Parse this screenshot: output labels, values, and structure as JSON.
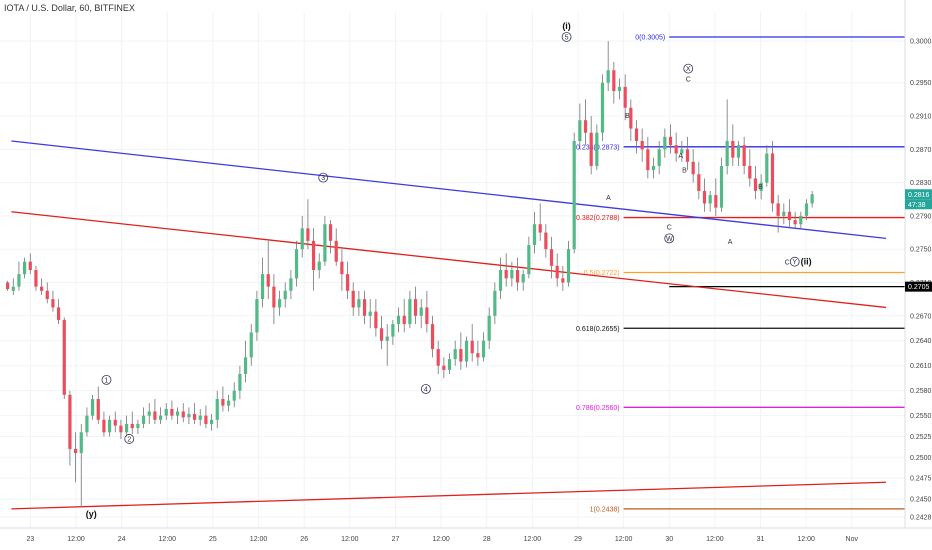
{
  "header": {
    "title": "IOTA / U.S. Dollar, 60, BITFINEX"
  },
  "chart_data": {
    "type": "candlestick",
    "symbol": "IOTA / U.S. Dollar",
    "interval": "60",
    "exchange": "BITFINEX",
    "ylim": [
      0.2415,
      0.3035
    ],
    "y_ticks": [
      0.3,
      0.295,
      0.291,
      0.287,
      0.283,
      0.279,
      0.275,
      0.271,
      0.267,
      0.264,
      0.261,
      0.258,
      0.255,
      0.2525,
      0.25,
      0.2475,
      0.245,
      0.2428
    ],
    "y_tick_labels": [
      "0.3000",
      "0.2950",
      "0.2910",
      "0.2870",
      "0.2830",
      "0.2790",
      "0.2750",
      "0.2710",
      "0.2670",
      "0.2640",
      "0.2610",
      "0.2580",
      "0.2550",
      "0.2525",
      "0.2500",
      "0.2475",
      "0.2450",
      "0.2428"
    ],
    "x_labels": [
      {
        "label": "23",
        "t": 0
      },
      {
        "label": "12:00",
        "t": 12
      },
      {
        "label": "24",
        "t": 24
      },
      {
        "label": "12:00",
        "t": 36
      },
      {
        "label": "25",
        "t": 48
      },
      {
        "label": "12:00",
        "t": 60
      },
      {
        "label": "26",
        "t": 72
      },
      {
        "label": "12:00",
        "t": 84
      },
      {
        "label": "27",
        "t": 96
      },
      {
        "label": "12:00",
        "t": 108
      },
      {
        "label": "28",
        "t": 120
      },
      {
        "label": "12:00",
        "t": 132
      },
      {
        "label": "29",
        "t": 144
      },
      {
        "label": "12:00",
        "t": 156
      },
      {
        "label": "30",
        "t": 168
      },
      {
        "label": "12:00",
        "t": 180
      },
      {
        "label": "31",
        "t": 192
      },
      {
        "label": "12:00",
        "t": 204
      },
      {
        "label": "Nov",
        "t": 216
      }
    ],
    "price_labels": [
      {
        "value": 0.2816,
        "text": "0.2816",
        "color": "#26a69a"
      },
      {
        "value": 0.2804,
        "text": "47:38",
        "color": "#26a69a"
      },
      {
        "value": 0.2705,
        "text": "0.2705",
        "color": "#000000"
      }
    ],
    "fib_levels": [
      {
        "label": "0(0.3005)",
        "value": 0.3005,
        "color": "#2e2ee6",
        "t_start": 168,
        "t_end": 230
      },
      {
        "label": "0.236(0.2873)",
        "value": 0.2873,
        "color": "#2e2ee6",
        "t_start": 156,
        "t_end": 230
      },
      {
        "label": "0.382(0.2788)",
        "value": 0.2788,
        "color": "#e0201c",
        "t_start": 156,
        "t_end": 230
      },
      {
        "label": "0.5(0.2722)",
        "value": 0.2722,
        "color": "#ff9f2e",
        "t_start": 156,
        "t_end": 230
      },
      {
        "label": "0.618(0.2655)",
        "value": 0.2655,
        "color": "#111111",
        "t_start": 156,
        "t_end": 230
      },
      {
        "label": "0.786(0.2560)",
        "value": 0.256,
        "color": "#e020e0",
        "t_start": 156,
        "t_end": 230
      },
      {
        "label": "1(0.2438)",
        "value": 0.2438,
        "color": "#b85c1c",
        "t_start": 156,
        "t_end": 230
      }
    ],
    "horizontal_lines": [
      {
        "value": 0.2705,
        "color": "#000000",
        "t_start": 168,
        "t_end": 230
      }
    ],
    "trend_lines": [
      {
        "color": "#3b3be0",
        "t1": -5,
        "v1": 0.288,
        "t2": 225,
        "v2": 0.2763
      },
      {
        "color": "#e0201c",
        "t1": -5,
        "v1": 0.2795,
        "t2": 225,
        "v2": 0.268
      },
      {
        "color": "#e0201c",
        "t1": -5,
        "v1": 0.2438,
        "t2": 225,
        "v2": 0.247
      }
    ],
    "wave_labels": [
      {
        "text": "1",
        "t": 20,
        "v": 0.2593,
        "circled": true
      },
      {
        "text": "2",
        "t": 26,
        "v": 0.2522,
        "circled": true
      },
      {
        "text": "3",
        "t": 77,
        "v": 0.2836,
        "circled": true
      },
      {
        "text": "4",
        "t": 104,
        "v": 0.2582,
        "circled": true
      },
      {
        "text": "5",
        "t": 141,
        "v": 0.3005,
        "circled": true
      },
      {
        "text": "(i)",
        "t": 141,
        "v": 0.3018,
        "circled": false,
        "bold": true
      },
      {
        "text": "(y)",
        "t": 16,
        "v": 0.2432,
        "circled": false,
        "bold": true
      },
      {
        "text": "X",
        "t": 173,
        "v": 0.2967,
        "circled": true
      },
      {
        "text": "C",
        "t": 173,
        "v": 0.2955,
        "circled": false
      },
      {
        "text": "B",
        "t": 157,
        "v": 0.2911,
        "circled": false
      },
      {
        "text": "A",
        "t": 171,
        "v": 0.2863,
        "circled": false
      },
      {
        "text": "B",
        "t": 172,
        "v": 0.2846,
        "circled": false
      },
      {
        "text": "A",
        "t": 152,
        "v": 0.2813,
        "circled": false
      },
      {
        "text": "C",
        "t": 168,
        "v": 0.2777,
        "circled": false
      },
      {
        "text": "W",
        "t": 168,
        "v": 0.2763,
        "circled": true
      },
      {
        "text": "A",
        "t": 184,
        "v": 0.276,
        "circled": false
      },
      {
        "text": "B",
        "t": 192,
        "v": 0.2826,
        "circled": false
      },
      {
        "text": "C",
        "t": 199,
        "v": 0.2735,
        "circled": false
      },
      {
        "text": "Y",
        "t": 201,
        "v": 0.2735,
        "circled": true
      },
      {
        "text": "(ii)",
        "t": 204,
        "v": 0.2735,
        "circled": false,
        "bold": true
      }
    ],
    "candles": [
      [
        0,
        0.271,
        0.2712,
        0.2702,
        0.27
      ],
      [
        1,
        0.27,
        0.2715,
        0.2705,
        0.2695
      ],
      [
        2,
        0.2705,
        0.2735,
        0.272,
        0.27
      ],
      [
        3,
        0.272,
        0.274,
        0.2735,
        0.2715
      ],
      [
        4,
        0.2735,
        0.2745,
        0.2725,
        0.272
      ],
      [
        5,
        0.2725,
        0.273,
        0.2705,
        0.27
      ],
      [
        6,
        0.2705,
        0.2715,
        0.27,
        0.2695
      ],
      [
        7,
        0.27,
        0.271,
        0.269,
        0.2685
      ],
      [
        8,
        0.269,
        0.27,
        0.268,
        0.2675
      ],
      [
        9,
        0.268,
        0.269,
        0.2665,
        0.266
      ],
      [
        10,
        0.2665,
        0.2668,
        0.2575,
        0.257
      ],
      [
        11,
        0.2575,
        0.258,
        0.251,
        0.249
      ],
      [
        12,
        0.251,
        0.253,
        0.2505,
        0.247
      ],
      [
        13,
        0.2505,
        0.254,
        0.253,
        0.244
      ],
      [
        14,
        0.253,
        0.256,
        0.255,
        0.2525
      ],
      [
        15,
        0.255,
        0.2575,
        0.257,
        0.2545
      ],
      [
        16,
        0.257,
        0.2585,
        0.2545,
        0.254
      ],
      [
        17,
        0.2545,
        0.2555,
        0.253,
        0.2525
      ],
      [
        18,
        0.253,
        0.255,
        0.2545,
        0.2525
      ],
      [
        19,
        0.2545,
        0.2555,
        0.2538,
        0.253
      ],
      [
        20,
        0.2538,
        0.2545,
        0.253,
        0.2522
      ],
      [
        21,
        0.253,
        0.255,
        0.254,
        0.2525
      ],
      [
        22,
        0.254,
        0.2555,
        0.2535,
        0.2528
      ],
      [
        23,
        0.2535,
        0.2545,
        0.254,
        0.2528
      ],
      [
        24,
        0.254,
        0.256,
        0.255,
        0.2535
      ],
      [
        25,
        0.255,
        0.2565,
        0.2555,
        0.254
      ],
      [
        26,
        0.2555,
        0.257,
        0.2545,
        0.254
      ],
      [
        27,
        0.2545,
        0.256,
        0.255,
        0.254
      ],
      [
        28,
        0.255,
        0.2565,
        0.2558,
        0.2545
      ],
      [
        29,
        0.2558,
        0.2568,
        0.255,
        0.2545
      ],
      [
        30,
        0.255,
        0.256,
        0.2555,
        0.254
      ],
      [
        31,
        0.2555,
        0.2565,
        0.2548,
        0.2542
      ],
      [
        32,
        0.2548,
        0.256,
        0.2552,
        0.254
      ],
      [
        33,
        0.2552,
        0.2565,
        0.2545,
        0.254
      ],
      [
        34,
        0.2545,
        0.2558,
        0.255,
        0.2538
      ],
      [
        35,
        0.255,
        0.2562,
        0.254,
        0.2535
      ],
      [
        36,
        0.254,
        0.2552,
        0.2545,
        0.2532
      ],
      [
        37,
        0.2545,
        0.258,
        0.257,
        0.2535
      ],
      [
        38,
        0.257,
        0.2585,
        0.2562,
        0.2555
      ],
      [
        39,
        0.2562,
        0.2575,
        0.2568,
        0.2555
      ],
      [
        40,
        0.2568,
        0.259,
        0.258,
        0.256
      ],
      [
        41,
        0.258,
        0.261,
        0.26,
        0.257
      ],
      [
        42,
        0.26,
        0.264,
        0.262,
        0.259
      ],
      [
        43,
        0.262,
        0.266,
        0.265,
        0.261
      ],
      [
        44,
        0.265,
        0.27,
        0.269,
        0.264
      ],
      [
        45,
        0.269,
        0.274,
        0.272,
        0.268
      ],
      [
        46,
        0.272,
        0.276,
        0.2705,
        0.269
      ],
      [
        47,
        0.2705,
        0.272,
        0.268,
        0.266
      ],
      [
        48,
        0.268,
        0.27,
        0.269,
        0.267
      ],
      [
        49,
        0.269,
        0.271,
        0.27,
        0.268
      ],
      [
        50,
        0.27,
        0.2725,
        0.2715,
        0.269
      ],
      [
        51,
        0.2715,
        0.276,
        0.275,
        0.2705
      ],
      [
        52,
        0.275,
        0.279,
        0.2775,
        0.274
      ],
      [
        53,
        0.2775,
        0.281,
        0.276,
        0.275
      ],
      [
        54,
        0.276,
        0.2775,
        0.2725,
        0.27
      ],
      [
        55,
        0.2725,
        0.2745,
        0.2735,
        0.2715
      ],
      [
        56,
        0.2735,
        0.279,
        0.278,
        0.273
      ],
      [
        57,
        0.278,
        0.2785,
        0.276,
        0.2745
      ],
      [
        58,
        0.276,
        0.2775,
        0.2735,
        0.273
      ],
      [
        59,
        0.2735,
        0.275,
        0.272,
        0.27
      ],
      [
        60,
        0.272,
        0.2735,
        0.27,
        0.269
      ],
      [
        61,
        0.27,
        0.271,
        0.268,
        0.267
      ],
      [
        62,
        0.268,
        0.27,
        0.269,
        0.267
      ],
      [
        63,
        0.269,
        0.27,
        0.267,
        0.266
      ],
      [
        64,
        0.267,
        0.269,
        0.2675,
        0.2655
      ],
      [
        65,
        0.2675,
        0.269,
        0.2655,
        0.2645
      ],
      [
        66,
        0.2655,
        0.267,
        0.264,
        0.263
      ],
      [
        67,
        0.264,
        0.266,
        0.2645,
        0.261
      ],
      [
        68,
        0.2645,
        0.2665,
        0.266,
        0.2635
      ],
      [
        69,
        0.266,
        0.268,
        0.267,
        0.265
      ],
      [
        70,
        0.267,
        0.269,
        0.266,
        0.265
      ],
      [
        71,
        0.266,
        0.27,
        0.269,
        0.2655
      ],
      [
        72,
        0.269,
        0.2705,
        0.267,
        0.266
      ],
      [
        73,
        0.267,
        0.269,
        0.268,
        0.2655
      ],
      [
        74,
        0.268,
        0.27,
        0.266,
        0.265
      ],
      [
        75,
        0.266,
        0.267,
        0.263,
        0.262
      ],
      [
        76,
        0.263,
        0.264,
        0.261,
        0.26
      ],
      [
        77,
        0.261,
        0.262,
        0.2605,
        0.2595
      ],
      [
        78,
        0.2605,
        0.2625,
        0.2618,
        0.26
      ],
      [
        79,
        0.2618,
        0.264,
        0.263,
        0.261
      ],
      [
        80,
        0.263,
        0.265,
        0.2615,
        0.2605
      ],
      [
        81,
        0.2615,
        0.2645,
        0.264,
        0.2608
      ],
      [
        82,
        0.264,
        0.266,
        0.2625,
        0.2615
      ],
      [
        83,
        0.2625,
        0.264,
        0.262,
        0.261
      ],
      [
        84,
        0.262,
        0.265,
        0.264,
        0.2615
      ],
      [
        85,
        0.264,
        0.268,
        0.267,
        0.263
      ],
      [
        86,
        0.267,
        0.271,
        0.27,
        0.266
      ],
      [
        87,
        0.27,
        0.274,
        0.2725,
        0.269
      ],
      [
        88,
        0.2725,
        0.2745,
        0.2715,
        0.2705
      ],
      [
        89,
        0.2715,
        0.2735,
        0.2725,
        0.2705
      ],
      [
        90,
        0.2725,
        0.274,
        0.271,
        0.27
      ],
      [
        91,
        0.271,
        0.2725,
        0.272,
        0.27
      ],
      [
        92,
        0.272,
        0.2765,
        0.2755,
        0.2715
      ],
      [
        93,
        0.2755,
        0.2795,
        0.278,
        0.2745
      ],
      [
        94,
        0.278,
        0.2805,
        0.277,
        0.276
      ],
      [
        95,
        0.277,
        0.278,
        0.275,
        0.274
      ],
      [
        96,
        0.275,
        0.2765,
        0.273,
        0.2715
      ],
      [
        97,
        0.273,
        0.2745,
        0.2715,
        0.2705
      ],
      [
        98,
        0.2715,
        0.273,
        0.271,
        0.27
      ],
      [
        99,
        0.271,
        0.276,
        0.275,
        0.2705
      ],
      [
        100,
        0.275,
        0.289,
        0.288,
        0.2745
      ],
      [
        101,
        0.288,
        0.2925,
        0.2905,
        0.287
      ],
      [
        102,
        0.2905,
        0.293,
        0.289,
        0.2875
      ],
      [
        103,
        0.289,
        0.291,
        0.285,
        0.284
      ],
      [
        104,
        0.285,
        0.29,
        0.289,
        0.2845
      ],
      [
        105,
        0.289,
        0.296,
        0.295,
        0.288
      ],
      [
        106,
        0.295,
        0.3,
        0.2965,
        0.294
      ],
      [
        107,
        0.2965,
        0.2975,
        0.294,
        0.2925
      ],
      [
        108,
        0.294,
        0.2955,
        0.2945,
        0.293
      ],
      [
        109,
        0.2945,
        0.296,
        0.292,
        0.2905
      ],
      [
        110,
        0.292,
        0.293,
        0.2895,
        0.288
      ],
      [
        111,
        0.2895,
        0.2905,
        0.288,
        0.2865
      ],
      [
        112,
        0.288,
        0.2895,
        0.287,
        0.2855
      ],
      [
        113,
        0.287,
        0.2885,
        0.2845,
        0.2835
      ],
      [
        114,
        0.2845,
        0.286,
        0.285,
        0.2835
      ],
      [
        115,
        0.285,
        0.288,
        0.287,
        0.284
      ],
      [
        116,
        0.287,
        0.2895,
        0.2885,
        0.286
      ],
      [
        117,
        0.2885,
        0.29,
        0.2875,
        0.2865
      ],
      [
        118,
        0.2875,
        0.289,
        0.2865,
        0.2855
      ],
      [
        119,
        0.2865,
        0.288,
        0.287,
        0.2855
      ],
      [
        120,
        0.287,
        0.2885,
        0.2855,
        0.2845
      ],
      [
        121,
        0.2855,
        0.287,
        0.284,
        0.283
      ],
      [
        122,
        0.284,
        0.2855,
        0.282,
        0.281
      ],
      [
        123,
        0.282,
        0.2835,
        0.2805,
        0.2795
      ],
      [
        124,
        0.2805,
        0.282,
        0.2815,
        0.2795
      ],
      [
        125,
        0.2815,
        0.2835,
        0.28,
        0.279
      ],
      [
        126,
        0.28,
        0.286,
        0.285,
        0.2795
      ],
      [
        127,
        0.285,
        0.293,
        0.288,
        0.284
      ],
      [
        128,
        0.288,
        0.29,
        0.286,
        0.285
      ],
      [
        129,
        0.286,
        0.288,
        0.2875,
        0.285
      ],
      [
        130,
        0.2875,
        0.2885,
        0.285,
        0.284
      ],
      [
        131,
        0.285,
        0.287,
        0.2835,
        0.2825
      ],
      [
        132,
        0.2835,
        0.285,
        0.282,
        0.281
      ],
      [
        133,
        0.282,
        0.284,
        0.283,
        0.281
      ],
      [
        134,
        0.283,
        0.2875,
        0.2865,
        0.2825
      ],
      [
        135,
        0.2865,
        0.288,
        0.2805,
        0.2795
      ],
      [
        136,
        0.2805,
        0.2815,
        0.279,
        0.277
      ],
      [
        137,
        0.279,
        0.2805,
        0.2795,
        0.278
      ],
      [
        138,
        0.2795,
        0.281,
        0.2785,
        0.2775
      ],
      [
        139,
        0.2785,
        0.2795,
        0.278,
        0.2775
      ],
      [
        140,
        0.278,
        0.2795,
        0.279,
        0.2775
      ],
      [
        141,
        0.279,
        0.281,
        0.2805,
        0.2785
      ],
      [
        142,
        0.2805,
        0.282,
        0.2816,
        0.28
      ]
    ]
  }
}
